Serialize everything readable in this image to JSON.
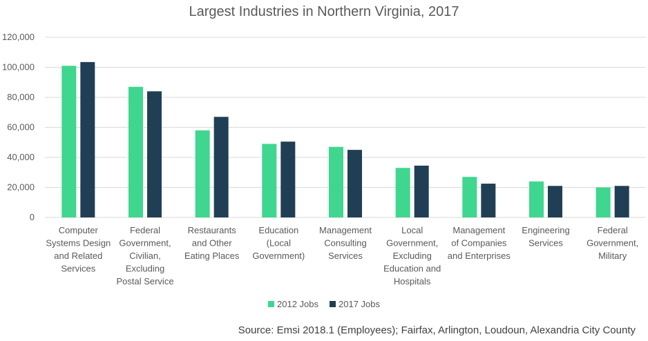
{
  "chart_data": {
    "type": "bar",
    "title": "Largest Industries in Northern Virginia, 2017",
    "categories": [
      [
        "Computer",
        "Systems Design",
        "and Related",
        "Services"
      ],
      [
        "Federal",
        "Government,",
        "Civilian,",
        "Excluding",
        "Postal Service"
      ],
      [
        "Restaurants",
        "and Other",
        "Eating Places"
      ],
      [
        "Education",
        "(Local",
        "Government)"
      ],
      [
        "Management",
        "Consulting",
        "Services"
      ],
      [
        "Local",
        "Government,",
        "Excluding",
        "Education and",
        "Hospitals"
      ],
      [
        "Management",
        "of Companies",
        "and Enterprises"
      ],
      [
        "Engineering",
        "Services"
      ],
      [
        "Federal",
        "Government,",
        "Military"
      ]
    ],
    "series": [
      {
        "name": "2012 Jobs",
        "color": "#3fd68f",
        "values": [
          101000,
          87000,
          58000,
          49000,
          47000,
          33000,
          27000,
          24000,
          20000
        ]
      },
      {
        "name": "2017 Jobs",
        "color": "#203f55",
        "values": [
          103500,
          84000,
          67000,
          50500,
          45000,
          34500,
          22500,
          21000,
          21000
        ]
      }
    ],
    "ylim": [
      0,
      120000
    ],
    "yticks": [
      "0",
      "20,000",
      "40,000",
      "60,000",
      "80,000",
      "100,000",
      "120,000"
    ],
    "ytick_values": [
      0,
      20000,
      40000,
      60000,
      80000,
      100000,
      120000
    ],
    "grid": true,
    "legend_position": "bottom",
    "xlabel": "",
    "ylabel": ""
  },
  "source": "Source: Emsi 2018.1 (Employees); Fairfax, Arlington, Loudoun, Alexandria City County"
}
